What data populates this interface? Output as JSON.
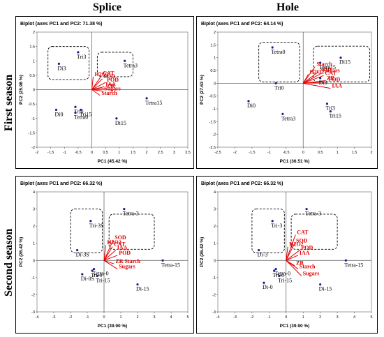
{
  "column_headers": [
    "Splice",
    "Hole"
  ],
  "row_headers": [
    "First season",
    "Second season"
  ],
  "chart_data": [
    {
      "type": "scatter",
      "title": "Biplot (axes PC1 and PC2: 71.38 %)",
      "xlabel": "PC1 (45.42 %)",
      "ylabel": "PC2 (25.96 %)",
      "xlim": [
        -2,
        3.5
      ],
      "ylim": [
        -2,
        2
      ],
      "xticks": [
        "-2",
        "-1.5",
        "-1",
        "-0.5",
        "0",
        "0.5",
        "1",
        "1.5",
        "2",
        "2.5",
        "3",
        "3.5"
      ],
      "yticks": [
        "-2",
        "-1.5",
        "-1",
        "-0.5",
        "0",
        "0.5",
        "1",
        "1.5",
        "2"
      ],
      "observations": [
        {
          "label": "Tri3",
          "x": -0.5,
          "y": 1.3
        },
        {
          "label": "Di3",
          "x": -1.2,
          "y": 0.9
        },
        {
          "label": "Tetra3",
          "x": 1.2,
          "y": 1.0
        },
        {
          "label": "Tri0",
          "x": -0.6,
          "y": -0.6
        },
        {
          "label": "Di0",
          "x": -1.3,
          "y": -0.7
        },
        {
          "label": "Tri15",
          "x": -0.4,
          "y": -0.7
        },
        {
          "label": "Tetra0",
          "x": -0.6,
          "y": -0.8
        },
        {
          "label": "Tetra15",
          "x": 2.0,
          "y": -0.3
        },
        {
          "label": "Di15",
          "x": 0.9,
          "y": -1.0
        }
      ],
      "variables": [
        {
          "label": "CAT",
          "x": 0.35,
          "y": 0.48
        },
        {
          "label": "SOD",
          "x": 0.38,
          "y": 0.38
        },
        {
          "label": "H2O2",
          "x": 0.05,
          "y": 0.45
        },
        {
          "label": "POD",
          "x": 0.5,
          "y": 0.25
        },
        {
          "label": "IAA",
          "x": 0.45,
          "y": 0.1
        },
        {
          "label": "ZR",
          "x": 0.5,
          "y": 0.05
        },
        {
          "label": "Sugars",
          "x": 0.4,
          "y": -0.05
        },
        {
          "label": "Starch",
          "x": 0.3,
          "y": -0.2
        }
      ]
    },
    {
      "type": "scatter",
      "title": "Biplot (axes PC1 and PC2: 64.14 %)",
      "xlabel": "PC1 (36.51 %)",
      "ylabel": "PC2 (27.63 %)",
      "xlim": [
        -2.5,
        2
      ],
      "ylim": [
        -2.5,
        2
      ],
      "xticks": [
        "-2.5",
        "-2",
        "-1.5",
        "-1",
        "-0.5",
        "0",
        "0.5",
        "1",
        "1.5",
        "2"
      ],
      "yticks": [
        "-2.5",
        "-2",
        "-1.5",
        "-1",
        "-0.5",
        "0",
        "0.5",
        "1",
        "1.5",
        "2"
      ],
      "observations": [
        {
          "label": "Tetra0",
          "x": -0.9,
          "y": 1.4
        },
        {
          "label": "Tri0",
          "x": -0.8,
          "y": 0.0
        },
        {
          "label": "Di0",
          "x": -1.6,
          "y": -0.7
        },
        {
          "label": "Tetra3",
          "x": -0.6,
          "y": -1.2
        },
        {
          "label": "Tetra15",
          "x": 0.5,
          "y": 0.8
        },
        {
          "label": "Di15",
          "x": 1.1,
          "y": 1.0
        },
        {
          "label": "Di3",
          "x": 0.5,
          "y": 0.2
        },
        {
          "label": "Tri3",
          "x": 0.7,
          "y": -0.8
        },
        {
          "label": "Tri15",
          "x": 0.8,
          "y": -1.1
        }
      ],
      "variables": [
        {
          "label": "Starch",
          "x": 0.35,
          "y": 0.65
        },
        {
          "label": "SOD",
          "x": 0.45,
          "y": 0.45
        },
        {
          "label": "Sugars",
          "x": 0.55,
          "y": 0.4
        },
        {
          "label": "H2O2",
          "x": 0.15,
          "y": 0.35
        },
        {
          "label": "CAT",
          "x": 0.6,
          "y": 0.3
        },
        {
          "label": "ZR",
          "x": 0.65,
          "y": 0.1
        },
        {
          "label": "POD",
          "x": 0.7,
          "y": 0.05
        },
        {
          "label": "IAA",
          "x": 0.8,
          "y": -0.2
        }
      ]
    },
    {
      "type": "scatter",
      "title": "Biplot (axes PC1 and PC2: 66.32 %)",
      "xlabel": "PC1 (39.90 %)",
      "ylabel": "PC2 (26.42 %)",
      "xlim": [
        -4,
        5
      ],
      "ylim": [
        -3,
        4
      ],
      "xticks": [
        "-4",
        "-3",
        "-2",
        "-1",
        "0",
        "1",
        "2",
        "3",
        "4",
        "5"
      ],
      "yticks": [
        "-3",
        "-2",
        "-1",
        "0",
        "1",
        "2",
        "3",
        "4"
      ],
      "observations": [
        {
          "label": "Tri-3S",
          "x": -0.8,
          "y": 2.3
        },
        {
          "label": "Di-3S",
          "x": -1.6,
          "y": 0.6
        },
        {
          "label": "Tetra-3",
          "x": 1.2,
          "y": 3.0
        },
        {
          "label": "Tetra-0",
          "x": -0.6,
          "y": -0.5
        },
        {
          "label": "Tri-0",
          "x": -0.7,
          "y": -0.6
        },
        {
          "label": "Di-0S",
          "x": -1.3,
          "y": -0.8
        },
        {
          "label": "Tri-15",
          "x": -0.4,
          "y": -0.9
        },
        {
          "label": "Tetra-15",
          "x": 3.5,
          "y": 0.0
        },
        {
          "label": "Di-15",
          "x": 2.0,
          "y": -1.4
        }
      ],
      "variables": [
        {
          "label": "SOD",
          "x": 0.55,
          "y": 1.2
        },
        {
          "label": "H2O2",
          "x": 0.1,
          "y": 0.9
        },
        {
          "label": "CAT",
          "x": 0.5,
          "y": 0.8
        },
        {
          "label": "IAA",
          "x": 0.7,
          "y": 0.6
        },
        {
          "label": "POD",
          "x": 0.8,
          "y": 0.3
        },
        {
          "label": "ZR Starch",
          "x": 0.6,
          "y": -0.2
        },
        {
          "label": "Sugars",
          "x": 0.8,
          "y": -0.5
        }
      ]
    },
    {
      "type": "scatter",
      "title": "Biplot (axes PC1 and PC2: 66.32 %)",
      "xlabel": "PC1 (39.90 %)",
      "ylabel": "PC2 (26.42 %)",
      "xlim": [
        -4,
        5
      ],
      "ylim": [
        -3,
        4
      ],
      "xticks": [
        "-4",
        "-3",
        "-2",
        "-1",
        "0",
        "1",
        "2",
        "3",
        "4",
        "5"
      ],
      "yticks": [
        "-3",
        "-2",
        "-1",
        "0",
        "1",
        "2",
        "3",
        "4"
      ],
      "observations": [
        {
          "label": "Tri-3",
          "x": -0.8,
          "y": 2.3
        },
        {
          "label": "Di-3",
          "x": -1.6,
          "y": 0.6
        },
        {
          "label": "Tetra-3",
          "x": 1.2,
          "y": 3.0
        },
        {
          "label": "Tri-0",
          "x": -0.7,
          "y": -0.6
        },
        {
          "label": "Tetra-0",
          "x": -0.6,
          "y": -0.5
        },
        {
          "label": "Di-0",
          "x": -1.3,
          "y": -1.3
        },
        {
          "label": "Tri-15",
          "x": -0.4,
          "y": -0.9
        },
        {
          "label": "Tetra-15",
          "x": 3.5,
          "y": 0.0
        },
        {
          "label": "Di-15",
          "x": 2.0,
          "y": -1.4
        }
      ],
      "variables": [
        {
          "label": "CAT",
          "x": 0.55,
          "y": 1.5
        },
        {
          "label": "SOD",
          "x": 0.5,
          "y": 1.0
        },
        {
          "label": "POD",
          "x": 0.8,
          "y": 0.6
        },
        {
          "label": "H2O2",
          "x": 0.1,
          "y": 0.8
        },
        {
          "label": "IAA",
          "x": 0.7,
          "y": 0.3
        },
        {
          "label": "ZR",
          "x": 0.5,
          "y": -0.3
        },
        {
          "label": "Starch",
          "x": 0.7,
          "y": -0.5
        },
        {
          "label": "Sugars",
          "x": 0.9,
          "y": -0.9
        }
      ]
    }
  ]
}
